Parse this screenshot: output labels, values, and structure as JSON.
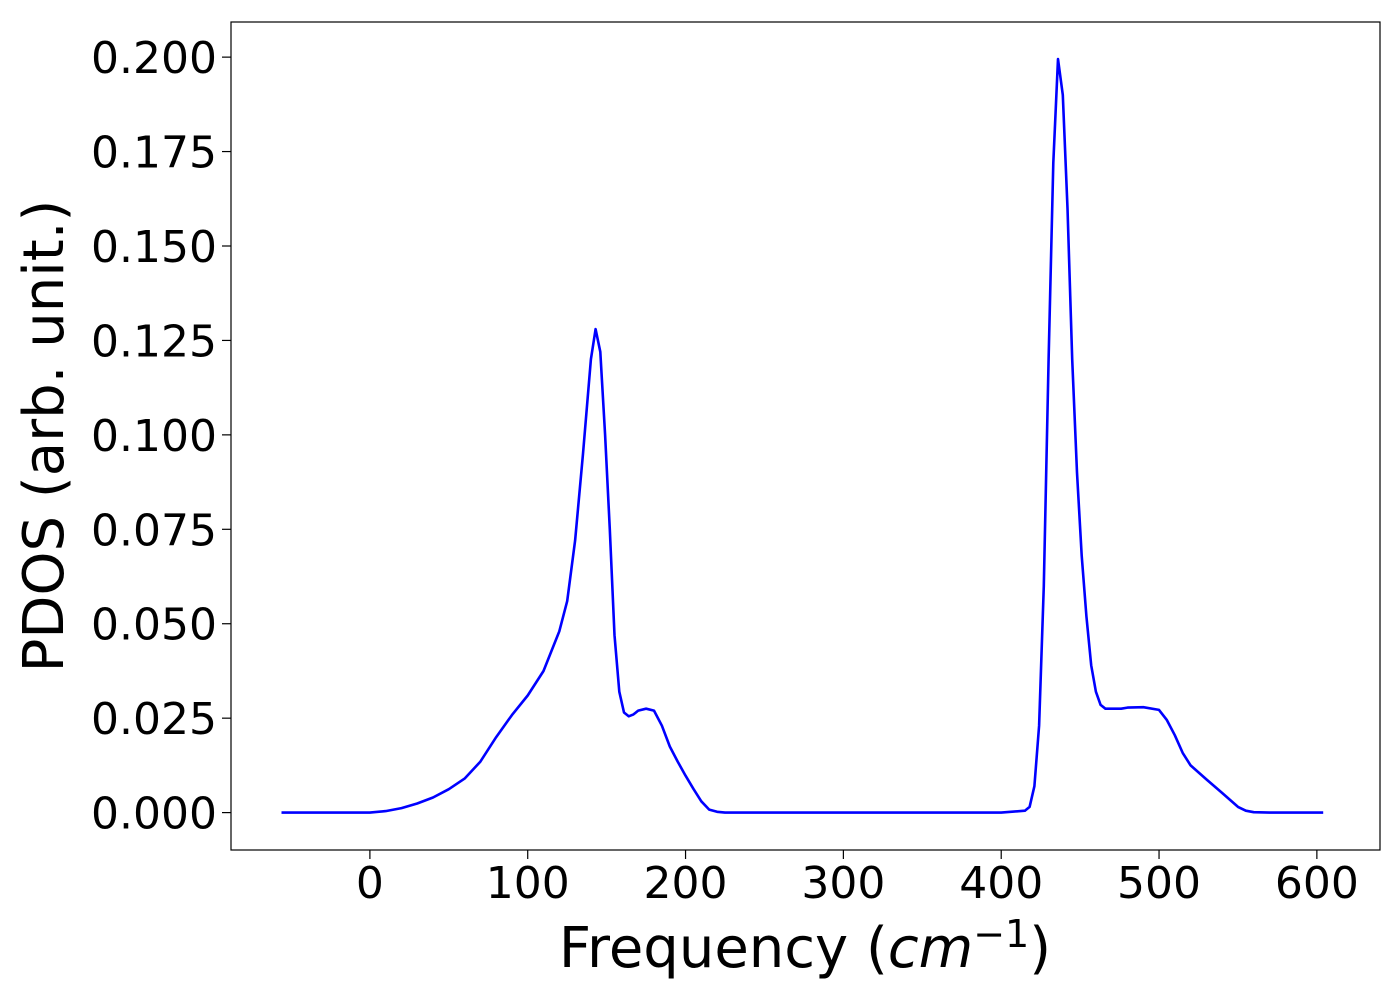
{
  "chart_data": {
    "type": "line",
    "xlabel": "Frequency ",
    "xlabel_unit": "cm",
    "xlabel_unit_exp": "−1",
    "ylabel": "PDOS (arb. unit.)",
    "xlim": [
      -88,
      640
    ],
    "ylim": [
      -0.0099,
      0.2093
    ],
    "xticks": [
      0,
      100,
      200,
      300,
      400,
      500,
      600
    ],
    "yticks": [
      0.0,
      0.025,
      0.05,
      0.075,
      0.1,
      0.125,
      0.15,
      0.175,
      0.2
    ],
    "ytick_labels": [
      "0.000",
      "0.025",
      "0.050",
      "0.075",
      "0.100",
      "0.125",
      "0.150",
      "0.175",
      "0.200"
    ],
    "grid": false,
    "series": [
      {
        "color": "#0000ff",
        "x": [
          -56,
          0,
          10,
          20,
          30,
          40,
          50,
          60,
          70,
          80,
          90,
          100,
          110,
          120,
          125,
          130,
          135,
          140,
          143,
          146,
          149,
          152,
          155,
          158,
          161,
          164,
          167,
          170,
          175,
          180,
          185,
          190,
          195,
          200,
          205,
          210,
          215,
          220,
          225,
          230,
          240,
          260,
          300,
          350,
          400,
          415,
          418,
          421,
          424,
          427,
          430,
          433,
          436,
          439,
          442,
          445,
          448,
          451,
          454,
          457,
          460,
          463,
          466,
          469,
          472,
          476,
          480,
          490,
          500,
          505,
          510,
          515,
          520,
          530,
          540,
          550,
          555,
          560,
          570,
          604
        ],
        "y": [
          0.0,
          0.0,
          0.0004,
          0.0012,
          0.0024,
          0.004,
          0.0062,
          0.009,
          0.0135,
          0.02,
          0.0258,
          0.031,
          0.0375,
          0.048,
          0.056,
          0.072,
          0.095,
          0.12,
          0.128,
          0.122,
          0.1,
          0.075,
          0.047,
          0.032,
          0.0265,
          0.0255,
          0.026,
          0.027,
          0.0275,
          0.027,
          0.023,
          0.0175,
          0.0135,
          0.0098,
          0.0063,
          0.003,
          0.0008,
          0.0002,
          0.0,
          0.0,
          0.0,
          0.0,
          0.0,
          0.0,
          0.0,
          0.0005,
          0.0015,
          0.007,
          0.023,
          0.06,
          0.12,
          0.172,
          0.1995,
          0.19,
          0.16,
          0.12,
          0.09,
          0.068,
          0.052,
          0.039,
          0.032,
          0.0285,
          0.0275,
          0.0275,
          0.0275,
          0.0275,
          0.0278,
          0.0279,
          0.0272,
          0.0245,
          0.0205,
          0.0158,
          0.0125,
          0.0088,
          0.0052,
          0.0015,
          0.0005,
          0.0001,
          0.0,
          0.0
        ]
      }
    ]
  }
}
